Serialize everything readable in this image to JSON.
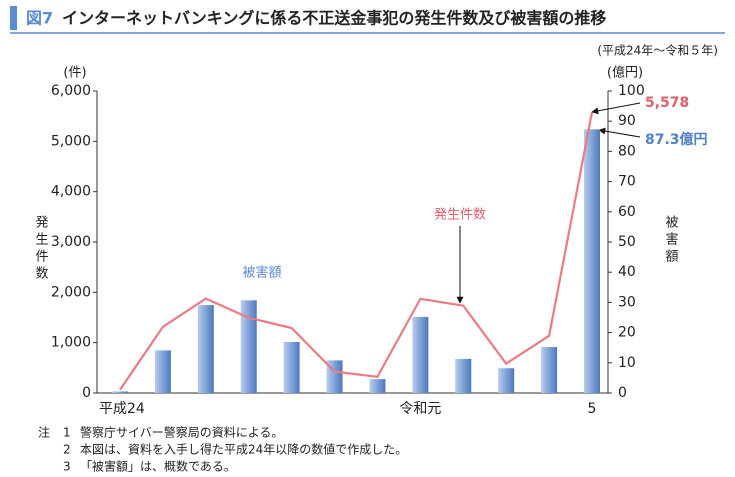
{
  "chart_data": {
    "type": "bar_line",
    "figure_label": "図7",
    "title": "インターネットバンキングに係る不正送金事犯の発生件数及び被害額の推移",
    "subtitle": "(平成24年～令和５年)",
    "y_unit": "(件)",
    "y2_unit": "(億円)",
    "y_label": "発生件数",
    "y2_label": "被害額",
    "categories": [
      "平成24",
      null,
      null,
      null,
      null,
      null,
      null,
      "令和元",
      null,
      null,
      null,
      "5"
    ],
    "ylim": [
      0,
      6000
    ],
    "yticks": [
      0,
      {
        "value": 1000,
        "label": "1,000"
      },
      {
        "value": 2000,
        "label": "2,000"
      },
      {
        "value": 3000,
        "label": "3,000"
      },
      {
        "value": 4000,
        "label": "4,000"
      },
      {
        "value": 5000,
        "label": "5,000"
      },
      {
        "value": 6000,
        "label": "6,000"
      }
    ],
    "y2lim": [
      0,
      100
    ],
    "y2ticks": [
      0,
      10,
      20,
      30,
      40,
      50,
      60,
      70,
      80,
      90,
      100
    ],
    "series": [
      {
        "name": "発生件数",
        "type": "line",
        "color": "#eb7a83",
        "values": [
          64,
          1315,
          1876,
          1495,
          1291,
          425,
          322,
          1872,
          1734,
          584,
          1136,
          5578
        ],
        "value_labels": [
          null,
          null,
          null,
          null,
          null,
          null,
          null,
          null,
          null,
          null,
          null,
          "5,578"
        ]
      },
      {
        "name": "被害額",
        "type": "bar",
        "axis": "y2",
        "color": "#7fa3d8",
        "values": [
          0.5,
          14.1,
          29.1,
          30.7,
          16.9,
          10.8,
          4.6,
          25.2,
          11.3,
          8.2,
          15.2,
          87.3
        ],
        "value_labels": [
          null,
          null,
          null,
          null,
          null,
          null,
          null,
          null,
          null,
          null,
          null,
          "87.3億円"
        ]
      }
    ],
    "notes_label": "注",
    "notes": [
      {
        "number": "1",
        "text": "警察庁サイバー警察局の資料による。"
      },
      {
        "number": "2",
        "text": "本図は、資料を入手し得た平成24年以降の数値で作成した。"
      },
      {
        "number": "3",
        "text": "「被害額」は、概数である。"
      }
    ]
  }
}
